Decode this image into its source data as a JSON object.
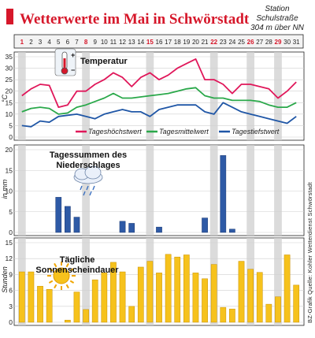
{
  "header": {
    "title": "Wetterwerte im Mai in Schwörstadt",
    "station_line1": "Station",
    "station_line2": "Schulstraße",
    "station_line3": "304 m über NN"
  },
  "colors": {
    "accent": "#d6172a",
    "grid": "#cfcfcf",
    "weekend_band": "#cfcfcf",
    "panel_bg": "#ffffff",
    "high_line": "#e0175a",
    "mean_line": "#2aa84a",
    "low_line": "#1f56a6",
    "rain_bar": "#2e5aa6",
    "sun_bar": "#f6c21c"
  },
  "credit": {
    "left": "BZ-Grafik",
    "right": "Quelle: Kohler Wetterdienst Schwörstadt"
  },
  "chart_data": [
    {
      "type": "line",
      "title": "Temperatur",
      "ylabel": "°C",
      "ylim": [
        0,
        35
      ],
      "yticks": [
        0,
        5,
        10,
        15,
        20,
        25,
        30,
        35
      ],
      "grid": true,
      "legend": "bottom",
      "x": [
        1,
        2,
        3,
        4,
        5,
        6,
        7,
        8,
        9,
        10,
        11,
        12,
        13,
        14,
        15,
        16,
        17,
        18,
        19,
        20,
        21,
        22,
        23,
        24,
        25,
        26,
        27,
        28,
        29,
        30,
        31
      ],
      "highlighted_days": [
        1,
        8,
        15,
        22,
        26,
        29
      ],
      "series": [
        {
          "name": "Tageshöchstwert",
          "color": "#e0175a",
          "values": [
            18,
            21,
            23,
            22.5,
            13,
            14,
            20,
            20,
            23,
            25,
            28,
            26,
            22,
            26,
            28,
            25,
            27,
            30,
            32,
            34,
            25,
            25,
            23,
            19,
            23,
            23,
            22,
            21,
            17,
            20,
            24
          ]
        },
        {
          "name": "Tagesmittelwert",
          "color": "#2aa84a",
          "values": [
            11,
            12.5,
            13,
            12.5,
            10,
            10.5,
            13,
            14,
            15.5,
            17,
            19,
            17,
            17,
            17.5,
            18,
            18.5,
            19,
            20,
            21,
            21.5,
            18,
            17,
            17,
            16,
            16,
            16,
            15.5,
            14,
            13,
            13,
            15
          ]
        },
        {
          "name": "Tagestiefstwert",
          "color": "#1f56a6",
          "values": [
            5,
            4.5,
            7,
            6.5,
            9,
            9.5,
            10,
            9,
            8,
            10,
            11,
            12,
            11,
            11,
            9,
            12,
            13,
            14,
            14,
            14,
            11,
            10,
            15,
            13,
            11,
            10,
            9,
            8,
            7,
            6,
            9
          ]
        }
      ]
    },
    {
      "type": "bar",
      "title": "Tagessummen des Niederschlages",
      "ylabel": "in mm",
      "ylim": [
        0,
        20
      ],
      "yticks": [
        0,
        5,
        10,
        15,
        20
      ],
      "grid": true,
      "x": [
        1,
        2,
        3,
        4,
        5,
        6,
        7,
        8,
        9,
        10,
        11,
        12,
        13,
        14,
        15,
        16,
        17,
        18,
        19,
        20,
        21,
        22,
        23,
        24,
        25,
        26,
        27,
        28,
        29,
        30,
        31
      ],
      "values": [
        0,
        0,
        0,
        0,
        8.5,
        6.3,
        3.7,
        0,
        0,
        0,
        0,
        2.7,
        2.2,
        0,
        0,
        1.3,
        0,
        0,
        0,
        0,
        3.5,
        0,
        18.6,
        0.8,
        0,
        0,
        0,
        0,
        0,
        0,
        0
      ]
    },
    {
      "type": "bar",
      "title": "Tägliche Sonnenscheindauer",
      "ylabel": "Stunden",
      "ylim": [
        0,
        15
      ],
      "yticks": [
        0,
        3,
        6,
        9,
        12,
        15
      ],
      "grid": true,
      "x": [
        1,
        2,
        3,
        4,
        5,
        6,
        7,
        8,
        9,
        10,
        11,
        12,
        13,
        14,
        15,
        16,
        17,
        18,
        19,
        20,
        21,
        22,
        23,
        24,
        25,
        26,
        27,
        28,
        29,
        30,
        31
      ],
      "values": [
        9.5,
        9.5,
        6.8,
        6.2,
        0,
        0.4,
        5.7,
        2.4,
        8,
        9.3,
        11.3,
        9.5,
        3,
        10.4,
        11.5,
        9.3,
        12.8,
        12.3,
        12.7,
        9.3,
        8.2,
        10.9,
        2.8,
        2.5,
        11.5,
        10,
        9.4,
        3.4,
        4.8,
        12.7,
        7
      ]
    }
  ]
}
